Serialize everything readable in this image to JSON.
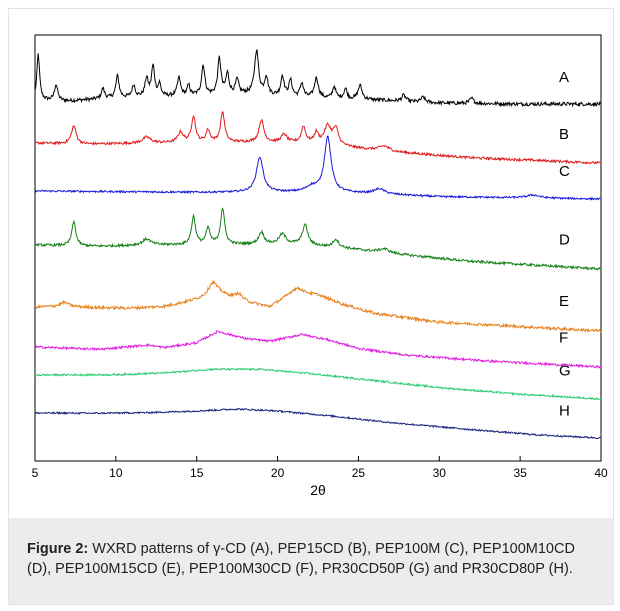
{
  "figure": {
    "caption_label": "Figure 2:",
    "caption_text": " WXRD patterns of γ-CD (A), PEP15CD (B), PEP100M (C), PEP100M10CD (D), PEP100M15CD (E), PEP100M30CD (F), PR30CD50P (G) and PR30CD80P (H)."
  },
  "chart_data": {
    "type": "line",
    "title": "",
    "xlabel": "2θ",
    "ylabel": "",
    "xlim": [
      5,
      40
    ],
    "x_ticks": [
      "5",
      "10",
      "15",
      "20",
      "25",
      "30",
      "35",
      "40"
    ],
    "y_ticks": [],
    "grid": false,
    "legend": "labels at right end of each curve",
    "series": [
      {
        "name": "A",
        "color": "#000000",
        "baseline": 95,
        "drift": 0,
        "noise": 1.8,
        "profile": [
          [
            5,
            4
          ],
          [
            7,
            3
          ],
          [
            10,
            6
          ],
          [
            14,
            8
          ],
          [
            18,
            10
          ],
          [
            22,
            6
          ],
          [
            26,
            4
          ],
          [
            30,
            1
          ],
          [
            35,
            0
          ],
          [
            40,
            0
          ]
        ],
        "peaks": [
          [
            5.2,
            46,
            0.1
          ],
          [
            6.3,
            16,
            0.12
          ],
          [
            9.2,
            10,
            0.12
          ],
          [
            10.1,
            22,
            0.12
          ],
          [
            11.1,
            12,
            0.12
          ],
          [
            11.9,
            18,
            0.12
          ],
          [
            12.3,
            30,
            0.12
          ],
          [
            12.7,
            12,
            0.1
          ],
          [
            13.9,
            18,
            0.12
          ],
          [
            14.5,
            10,
            0.1
          ],
          [
            15.4,
            30,
            0.12
          ],
          [
            16.4,
            36,
            0.12
          ],
          [
            16.9,
            20,
            0.12
          ],
          [
            17.5,
            14,
            0.12
          ],
          [
            18.7,
            44,
            0.15
          ],
          [
            19.3,
            18,
            0.12
          ],
          [
            20.3,
            20,
            0.12
          ],
          [
            20.8,
            16,
            0.12
          ],
          [
            21.5,
            14,
            0.12
          ],
          [
            22.4,
            20,
            0.15
          ],
          [
            23.5,
            12,
            0.12
          ],
          [
            24.2,
            10,
            0.12
          ],
          [
            25.1,
            14,
            0.15
          ],
          [
            27.8,
            6,
            0.15
          ],
          [
            29,
            5,
            0.15
          ],
          [
            32,
            5,
            0.15
          ]
        ]
      },
      {
        "name": "B",
        "color": "#e01b1b",
        "baseline": 140,
        "drift": 14,
        "noise": 1.2,
        "profile": [
          [
            5,
            6
          ],
          [
            8,
            6
          ],
          [
            11,
            8
          ],
          [
            14,
            10
          ],
          [
            18,
            12
          ],
          [
            22,
            13
          ],
          [
            24,
            10
          ],
          [
            27,
            6
          ],
          [
            32,
            2
          ],
          [
            40,
            0
          ]
        ],
        "peaks": [
          [
            7.4,
            18,
            0.18
          ],
          [
            11.9,
            6,
            0.3
          ],
          [
            14,
            10,
            0.2
          ],
          [
            14.8,
            26,
            0.15
          ],
          [
            15.7,
            12,
            0.15
          ],
          [
            16.6,
            30,
            0.15
          ],
          [
            19,
            22,
            0.18
          ],
          [
            20.4,
            8,
            0.2
          ],
          [
            21.6,
            16,
            0.15
          ],
          [
            22.4,
            10,
            0.15
          ],
          [
            23.1,
            18,
            0.25
          ],
          [
            23.6,
            16,
            0.2
          ],
          [
            26.6,
            5,
            0.4
          ]
        ]
      },
      {
        "name": "C",
        "color": "#1a1adb",
        "baseline": 182,
        "drift": 8,
        "noise": 0.9,
        "profile": [
          [
            5,
            0
          ],
          [
            15,
            1
          ],
          [
            19,
            2
          ],
          [
            23,
            3
          ],
          [
            26,
            2
          ],
          [
            30,
            0
          ],
          [
            40,
            0
          ]
        ],
        "peaks": [
          [
            18.9,
            35,
            0.25
          ],
          [
            22.1,
            5,
            0.4
          ],
          [
            23.1,
            55,
            0.25
          ],
          [
            26.3,
            5,
            0.4
          ],
          [
            35.8,
            3,
            0.5
          ]
        ]
      },
      {
        "name": "D",
        "color": "#138013",
        "baseline": 240,
        "drift": 20,
        "noise": 1.2,
        "profile": [
          [
            5,
            4
          ],
          [
            9,
            5
          ],
          [
            12,
            8
          ],
          [
            15,
            10
          ],
          [
            18,
            12
          ],
          [
            21,
            14
          ],
          [
            24,
            12
          ],
          [
            27,
            8
          ],
          [
            32,
            3
          ],
          [
            40,
            0
          ]
        ],
        "peaks": [
          [
            7.4,
            24,
            0.15
          ],
          [
            11.9,
            6,
            0.3
          ],
          [
            14.8,
            28,
            0.15
          ],
          [
            15.7,
            16,
            0.15
          ],
          [
            16.6,
            36,
            0.15
          ],
          [
            19,
            12,
            0.2
          ],
          [
            20.3,
            10,
            0.25
          ],
          [
            21.7,
            20,
            0.2
          ],
          [
            23.6,
            8,
            0.2
          ],
          [
            26.6,
            4,
            0.4
          ]
        ]
      },
      {
        "name": "E",
        "color": "#e8821e",
        "baseline": 298,
        "drift": 24,
        "noise": 1.4,
        "profile": [
          [
            5,
            0
          ],
          [
            7,
            2
          ],
          [
            9,
            2
          ],
          [
            11,
            3
          ],
          [
            13,
            6
          ],
          [
            15,
            14
          ],
          [
            16.5,
            20
          ],
          [
            18,
            14
          ],
          [
            19.5,
            10
          ],
          [
            21,
            26
          ],
          [
            22.5,
            24
          ],
          [
            24,
            16
          ],
          [
            26,
            8
          ],
          [
            30,
            2
          ],
          [
            40,
            0
          ]
        ],
        "peaks": [
          [
            6.8,
            4,
            0.3
          ],
          [
            16,
            14,
            0.35
          ],
          [
            17.6,
            6,
            0.3
          ],
          [
            21.3,
            4,
            0.4
          ]
        ]
      },
      {
        "name": "F",
        "color": "#e020e0",
        "baseline": 338,
        "drift": 20,
        "noise": 1.1,
        "profile": [
          [
            5,
            0
          ],
          [
            9,
            0
          ],
          [
            11,
            4
          ],
          [
            12,
            6
          ],
          [
            13,
            4
          ],
          [
            15,
            10
          ],
          [
            16.3,
            22
          ],
          [
            18,
            16
          ],
          [
            19.5,
            14
          ],
          [
            21.5,
            22
          ],
          [
            23,
            18
          ],
          [
            25,
            10
          ],
          [
            28,
            5
          ],
          [
            33,
            2
          ],
          [
            40,
            0
          ]
        ],
        "peaks": []
      },
      {
        "name": "G",
        "color": "#2ecc71",
        "baseline": 366,
        "drift": 26,
        "noise": 0.9,
        "profile": [
          [
            5,
            0
          ],
          [
            10,
            4
          ],
          [
            13,
            8
          ],
          [
            16,
            14
          ],
          [
            19,
            16
          ],
          [
            22,
            14
          ],
          [
            26,
            10
          ],
          [
            30,
            6
          ],
          [
            35,
            3
          ],
          [
            40,
            2
          ]
        ],
        "peaks": []
      },
      {
        "name": "H",
        "color": "#1a237e",
        "baseline": 404,
        "drift": 28,
        "noise": 0.8,
        "profile": [
          [
            5,
            0
          ],
          [
            9,
            3
          ],
          [
            12,
            6
          ],
          [
            15,
            10
          ],
          [
            17.5,
            14
          ],
          [
            20,
            14
          ],
          [
            23,
            12
          ],
          [
            27,
            8
          ],
          [
            32,
            5
          ],
          [
            36,
            3
          ],
          [
            40,
            3
          ]
        ],
        "peaks": []
      }
    ]
  }
}
